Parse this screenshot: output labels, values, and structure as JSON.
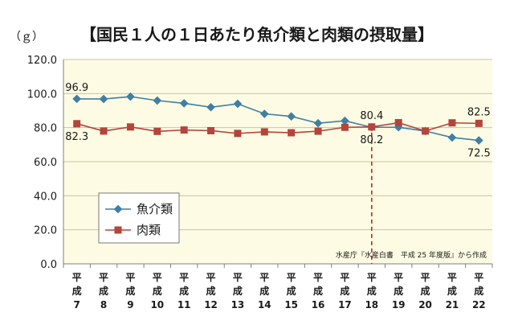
{
  "chart_data": {
    "type": "line",
    "title": "【国民１人の１日あたり魚介類と肉類の摂取量】",
    "unit_label": "（ｇ）",
    "categories": [
      [
        "平",
        "成",
        "7"
      ],
      [
        "平",
        "成",
        "8"
      ],
      [
        "平",
        "成",
        "9"
      ],
      [
        "平",
        "成",
        "10"
      ],
      [
        "平",
        "成",
        "11"
      ],
      [
        "平",
        "成",
        "12"
      ],
      [
        "平",
        "成",
        "13"
      ],
      [
        "平",
        "成",
        "14"
      ],
      [
        "平",
        "成",
        "15"
      ],
      [
        "平",
        "成",
        "16"
      ],
      [
        "平",
        "成",
        "17"
      ],
      [
        "平",
        "成",
        "18"
      ],
      [
        "平",
        "成",
        "19"
      ],
      [
        "平",
        "成",
        "20"
      ],
      [
        "平",
        "成",
        "21"
      ],
      [
        "平",
        "成",
        "22"
      ]
    ],
    "ylim": [
      0,
      120
    ],
    "yticks": [
      "0.0",
      "20.0",
      "40.0",
      "60.0",
      "80.0",
      "100.0",
      "120.0"
    ],
    "ytick_values": [
      0,
      20,
      40,
      60,
      80,
      100,
      120
    ],
    "grid": true,
    "legend_position": "lower-left",
    "series": [
      {
        "name": "魚介類",
        "color": "#3f7fa6",
        "marker": "diamond",
        "values": [
          96.9,
          96.8,
          98.2,
          95.9,
          94.3,
          92.0,
          94.0,
          88.1,
          86.6,
          82.6,
          84.0,
          80.2,
          80.2,
          78.0,
          74.2,
          72.5
        ]
      },
      {
        "name": "肉類",
        "color": "#b5443a",
        "marker": "square",
        "values": [
          82.3,
          78.0,
          80.4,
          77.8,
          78.6,
          78.2,
          76.6,
          77.5,
          77.0,
          77.9,
          80.2,
          80.4,
          82.9,
          78.0,
          82.8,
          82.5
        ]
      }
    ],
    "annotations": [
      {
        "text": "96.9",
        "series": 0,
        "index": 0,
        "pos": "above"
      },
      {
        "text": "82.3",
        "series": 1,
        "index": 0,
        "pos": "below"
      },
      {
        "text": "80.4",
        "series": 1,
        "index": 11,
        "pos": "above"
      },
      {
        "text": "80.2",
        "series": 0,
        "index": 11,
        "pos": "below"
      },
      {
        "text": "82.5",
        "series": 1,
        "index": 15,
        "pos": "above"
      },
      {
        "text": "72.5",
        "series": 0,
        "index": 15,
        "pos": "below"
      }
    ],
    "reference_line_index": 11,
    "reference_line_color": "#c0281c",
    "plot_background": "#fdfbe3",
    "source": "水産庁『水産白書　平成 25 年度版』から作成"
  }
}
